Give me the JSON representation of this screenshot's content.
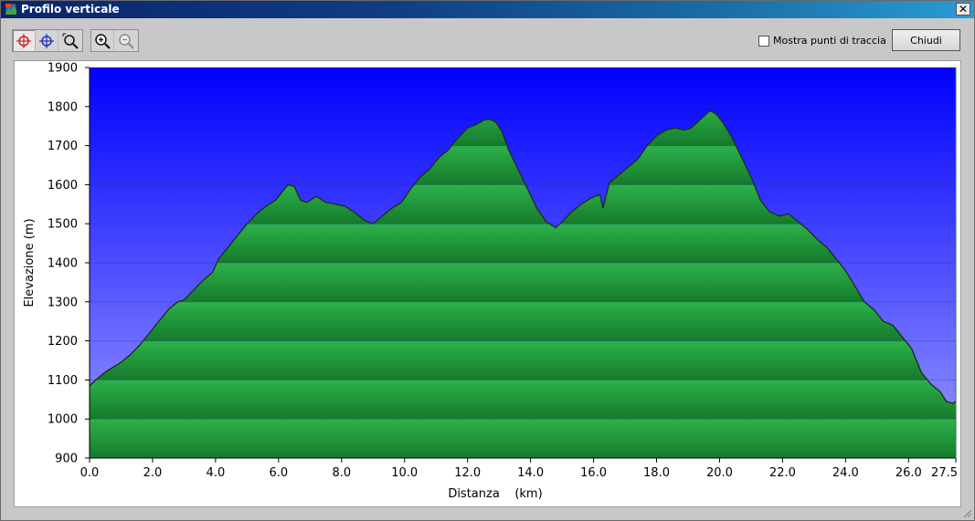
{
  "window": {
    "title": "Profilo verticale",
    "close_glyph": "✕"
  },
  "toolbar": {
    "tools": [
      {
        "name": "crosshair-red-icon",
        "active": true
      },
      {
        "name": "crosshair-blue-icon",
        "active": false
      },
      {
        "name": "zoom-area-icon",
        "active": false
      }
    ],
    "zoom": [
      {
        "name": "zoom-in-icon"
      },
      {
        "name": "zoom-out-icon"
      }
    ],
    "show_track_points_label": "Mostra punti di traccia",
    "show_track_points_checked": false,
    "close_label": "Chiudi"
  },
  "chart_data": {
    "type": "area",
    "title": "",
    "xlabel": "Distanza    (km)",
    "ylabel": "Elevazione (m)",
    "xlim": [
      0,
      27.5
    ],
    "ylim": [
      900,
      1900
    ],
    "x_ticks": [
      "0.0",
      "2.0",
      "4.0",
      "6.0",
      "8.0",
      "10.0",
      "12.0",
      "14.0",
      "16.0",
      "18.0",
      "20.0",
      "22.0",
      "24.0",
      "26.0",
      "27.5"
    ],
    "x_tick_values": [
      0,
      2,
      4,
      6,
      8,
      10,
      12,
      14,
      16,
      18,
      20,
      22,
      24,
      26,
      27.5
    ],
    "y_ticks": [
      "900",
      "1000",
      "1100",
      "1200",
      "1300",
      "1400",
      "1500",
      "1600",
      "1700",
      "1800",
      "1900"
    ],
    "y_tick_values": [
      900,
      1000,
      1100,
      1200,
      1300,
      1400,
      1500,
      1600,
      1700,
      1800,
      1900
    ],
    "grid": true,
    "colors": {
      "sky_top": "#0000ff",
      "sky_bottom": "#9999ff",
      "fill_light": "#2db24a",
      "fill_dark": "#157a2c",
      "line": "#1f2f1f"
    },
    "series": [
      {
        "x": [
          0,
          0.2,
          0.5,
          0.8,
          1.0,
          1.3,
          1.6,
          1.9,
          2.2,
          2.5,
          2.8,
          3.0,
          3.3,
          3.6,
          3.9,
          4.1,
          4.4,
          4.7,
          5.0,
          5.3,
          5.6,
          5.9,
          6.1,
          6.3,
          6.5,
          6.7,
          6.9,
          7.2,
          7.5,
          7.8,
          8.1,
          8.4,
          8.7,
          9.0,
          9.3,
          9.6,
          9.9,
          10.2,
          10.5,
          10.8,
          11.1,
          11.4,
          11.7,
          12.0,
          12.3,
          12.5,
          12.7,
          12.9,
          13.1,
          13.3,
          13.6,
          13.9,
          14.2,
          14.5,
          14.8,
          15.0,
          15.3,
          15.6,
          15.9,
          16.2,
          16.3,
          16.5,
          16.8,
          17.1,
          17.4,
          17.7,
          18.0,
          18.3,
          18.6,
          18.9,
          19.1,
          19.3,
          19.5,
          19.7,
          19.9,
          20.1,
          20.4,
          20.7,
          21.0,
          21.3,
          21.6,
          21.9,
          22.2,
          22.5,
          22.8,
          23.1,
          23.4,
          23.7,
          24.0,
          24.3,
          24.6,
          24.9,
          25.2,
          25.5,
          25.8,
          26.1,
          26.4,
          26.7,
          27.0,
          27.2,
          27.4,
          27.5
        ],
        "y": [
          1085,
          1100,
          1120,
          1135,
          1145,
          1165,
          1190,
          1220,
          1250,
          1280,
          1300,
          1305,
          1330,
          1355,
          1375,
          1410,
          1440,
          1470,
          1500,
          1525,
          1545,
          1560,
          1580,
          1600,
          1595,
          1560,
          1555,
          1570,
          1555,
          1550,
          1545,
          1530,
          1510,
          1500,
          1520,
          1540,
          1555,
          1590,
          1620,
          1640,
          1670,
          1690,
          1720,
          1745,
          1755,
          1765,
          1768,
          1760,
          1735,
          1690,
          1640,
          1590,
          1540,
          1505,
          1490,
          1505,
          1530,
          1550,
          1565,
          1575,
          1540,
          1605,
          1625,
          1645,
          1665,
          1700,
          1725,
          1740,
          1745,
          1740,
          1745,
          1760,
          1775,
          1790,
          1780,
          1760,
          1720,
          1670,
          1620,
          1560,
          1530,
          1520,
          1525,
          1505,
          1485,
          1460,
          1440,
          1410,
          1380,
          1340,
          1300,
          1280,
          1250,
          1240,
          1210,
          1180,
          1120,
          1090,
          1070,
          1045,
          1040,
          1045
        ]
      }
    ]
  }
}
